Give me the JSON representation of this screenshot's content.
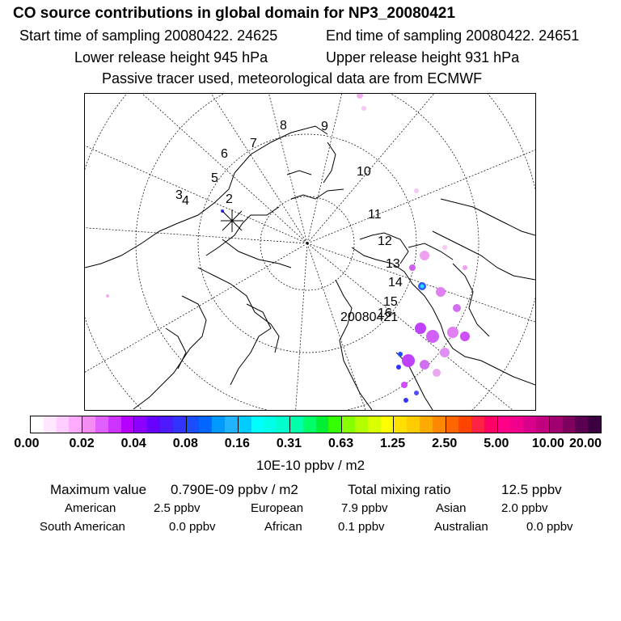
{
  "header": {
    "title": "CO  source contributions in global domain for NP3_20080421",
    "start_time": "Start time of sampling 20080422. 24625",
    "end_time": "End time of sampling 20080422. 24651",
    "lower_release": "Lower release height  945 hPa",
    "upper_release": "Upper release height  931 hPa",
    "tracer_note": "Passive tracer used, meteorological data are from ECMWF"
  },
  "map": {
    "track_labels": [
      "2",
      "3",
      "4",
      "5",
      "6",
      "7",
      "8",
      "9",
      "10",
      "11",
      "12",
      "13",
      "14",
      "15",
      "16",
      "20080421"
    ],
    "release_marker": "release-point"
  },
  "colorbar": {
    "unit": "10E-10 ppbv / m2",
    "ticks": [
      "0.00",
      "0.02",
      "0.04",
      "0.08",
      "0.16",
      "0.31",
      "0.63",
      "1.25",
      "2.50",
      "5.00",
      "10.00",
      "20.00"
    ],
    "colors": [
      "#ffffff",
      "#ffe6ff",
      "#ffccff",
      "#ffaaff",
      "#f38cf3",
      "#e060ff",
      "#cc33ff",
      "#b300ff",
      "#8c00ff",
      "#6600ff",
      "#4d1aff",
      "#3333ff",
      "#1a4dff",
      "#0066ff",
      "#0099ff",
      "#22b3ff",
      "#00ccff",
      "#00ffff",
      "#00ffe6",
      "#00ffcc",
      "#00ffaa",
      "#00ff66",
      "#00ee33",
      "#33ff00",
      "#88ff00",
      "#b3ff00",
      "#d9ff00",
      "#ffff00",
      "#ffe000",
      "#ffcc00",
      "#ffaa00",
      "#ff8800",
      "#ff6600",
      "#ff4400",
      "#ff2244",
      "#ff0066",
      "#ff0088",
      "#f0008c",
      "#d9008c",
      "#c0007e",
      "#a00070",
      "#800060",
      "#5a0050",
      "#3a0040"
    ]
  },
  "stats": {
    "max_label": "Maximum value",
    "max_value": "0.790E-09 ppbv / m2",
    "total_label": "Total mixing ratio",
    "total_value": "12.5 ppbv",
    "regions": [
      {
        "name": "American",
        "value": "2.5 ppbv"
      },
      {
        "name": "European",
        "value": "7.9 ppbv"
      },
      {
        "name": "Asian",
        "value": "2.0 ppbv"
      },
      {
        "name": "South American",
        "value": "0.0 ppbv"
      },
      {
        "name": "African",
        "value": "0.1 ppbv"
      },
      {
        "name": "Australian",
        "value": "0.0 ppbv"
      }
    ]
  }
}
